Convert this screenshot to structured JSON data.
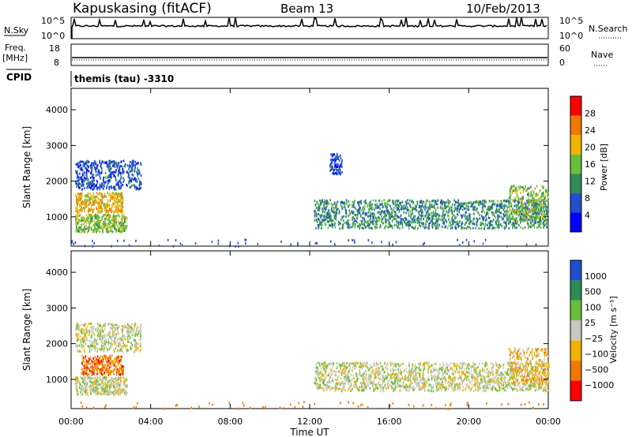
{
  "header": {
    "station": "Kapuskasing (fitACF)",
    "beam": "Beam 13",
    "date": "10/Feb/2013"
  },
  "left_labels": {
    "nsky": "N.Sky",
    "freq": "Freq.",
    "freq_unit": "[MHz]",
    "cpid": "CPID"
  },
  "right_labels": {
    "nsearch": "N.Search",
    "nave": "Nave"
  },
  "cpid_text": "themis (tau) -3310",
  "scales": {
    "noise_top": "10^5",
    "noise_bottom": "10^0",
    "freq_top": "18",
    "freq_bottom": "8",
    "nave_top": "60",
    "nave_bottom": "0"
  },
  "colors": {
    "power": [
      "#0000ff",
      "#1f4fcf",
      "#2e8b57",
      "#6abf3a",
      "#f0b400",
      "#f07800",
      "#ff0000"
    ],
    "velocity": [
      "#ff0000",
      "#f07800",
      "#f0b400",
      "#c8c8c0",
      "#6abf3a",
      "#2e8b57",
      "#1f4fcf"
    ]
  },
  "chart_data": [
    {
      "type": "line",
      "title": "Kapuskasing (fitACF)",
      "series": [
        {
          "name": "N.Sky",
          "values": []
        },
        {
          "name": "N.Search",
          "values": []
        }
      ],
      "ylim": [
        1,
        100000
      ],
      "y_scale": "log"
    },
    {
      "type": "line",
      "series": [
        {
          "name": "Freq.",
          "values": []
        },
        {
          "name": "Nave",
          "values": []
        }
      ]
    },
    {
      "type": "heatmap",
      "quantity": "Power",
      "ylabel": "Slant Range [km]",
      "xlabel": "Time UT",
      "x_ticks": [
        "00:00",
        "04:00",
        "08:00",
        "12:00",
        "16:00",
        "20:00",
        "00:00"
      ],
      "y_ticks": [
        1000,
        2000,
        3000,
        4000
      ],
      "ylim": [
        180,
        4600
      ],
      "colorbar_label": "Power [dB]",
      "colorbar_ticks": [
        4,
        8,
        12,
        16,
        20,
        24,
        28
      ],
      "scatter_regions": [
        {
          "t_start": 0.2,
          "t_end": 2.8,
          "range_start": 600,
          "range_end": 1100,
          "level": 3
        },
        {
          "t_start": 0.2,
          "t_end": 2.6,
          "range_start": 1150,
          "range_end": 1700,
          "level": 4
        },
        {
          "t_start": 0.2,
          "t_end": 3.5,
          "range_start": 1800,
          "range_end": 2600,
          "level": 1
        },
        {
          "t_start": 12.2,
          "t_end": 24.0,
          "range_start": 700,
          "range_end": 1500,
          "level": 2
        },
        {
          "t_start": 22.0,
          "t_end": 24.0,
          "range_start": 900,
          "range_end": 1900,
          "level": 3
        },
        {
          "t_start": 13.0,
          "t_end": 13.6,
          "range_start": 2200,
          "range_end": 2800,
          "level": 1
        }
      ]
    },
    {
      "type": "heatmap",
      "quantity": "Velocity",
      "ylabel": "Slant Range [km]",
      "xlabel": "Time UT",
      "x_ticks": [
        "00:00",
        "04:00",
        "08:00",
        "12:00",
        "16:00",
        "20:00",
        "00:00"
      ],
      "y_ticks": [
        1000,
        2000,
        3000,
        4000
      ],
      "ylim": [
        180,
        4600
      ],
      "colorbar_label": "Velocity [m s^-1]",
      "colorbar_ticks": [
        1000,
        500,
        100,
        25,
        -25,
        -100,
        -500,
        -1000
      ],
      "scatter_regions": [
        {
          "t_start": 0.2,
          "t_end": 2.8,
          "range_start": 600,
          "range_end": 1100,
          "level": 3
        },
        {
          "t_start": 0.5,
          "t_end": 2.6,
          "range_start": 1150,
          "range_end": 1700,
          "level": 1
        },
        {
          "t_start": 0.2,
          "t_end": 3.5,
          "range_start": 1800,
          "range_end": 2600,
          "level": 3
        },
        {
          "t_start": 12.2,
          "t_end": 24.0,
          "range_start": 700,
          "range_end": 1500,
          "level": 3
        },
        {
          "t_start": 22.0,
          "t_end": 24.0,
          "range_start": 900,
          "range_end": 1900,
          "level": 2
        }
      ]
    }
  ],
  "time_axis_label": "Time UT",
  "power_colorbar": {
    "label": "Power [dB]",
    "ticks": [
      "28",
      "24",
      "20",
      "16",
      "12",
      "8",
      "4"
    ]
  },
  "velocity_colorbar": {
    "label": "Velocity [m s⁻¹]",
    "ticks": [
      "1000",
      "500",
      "100",
      "25",
      "−25",
      "−100",
      "−500",
      "−1000"
    ]
  },
  "range_ticks": [
    "4000",
    "3000",
    "2000",
    "1000"
  ],
  "time_ticks": [
    "00:00",
    "04:00",
    "08:00",
    "12:00",
    "16:00",
    "20:00",
    "00:00"
  ],
  "range_label": "Slant Range [km]"
}
